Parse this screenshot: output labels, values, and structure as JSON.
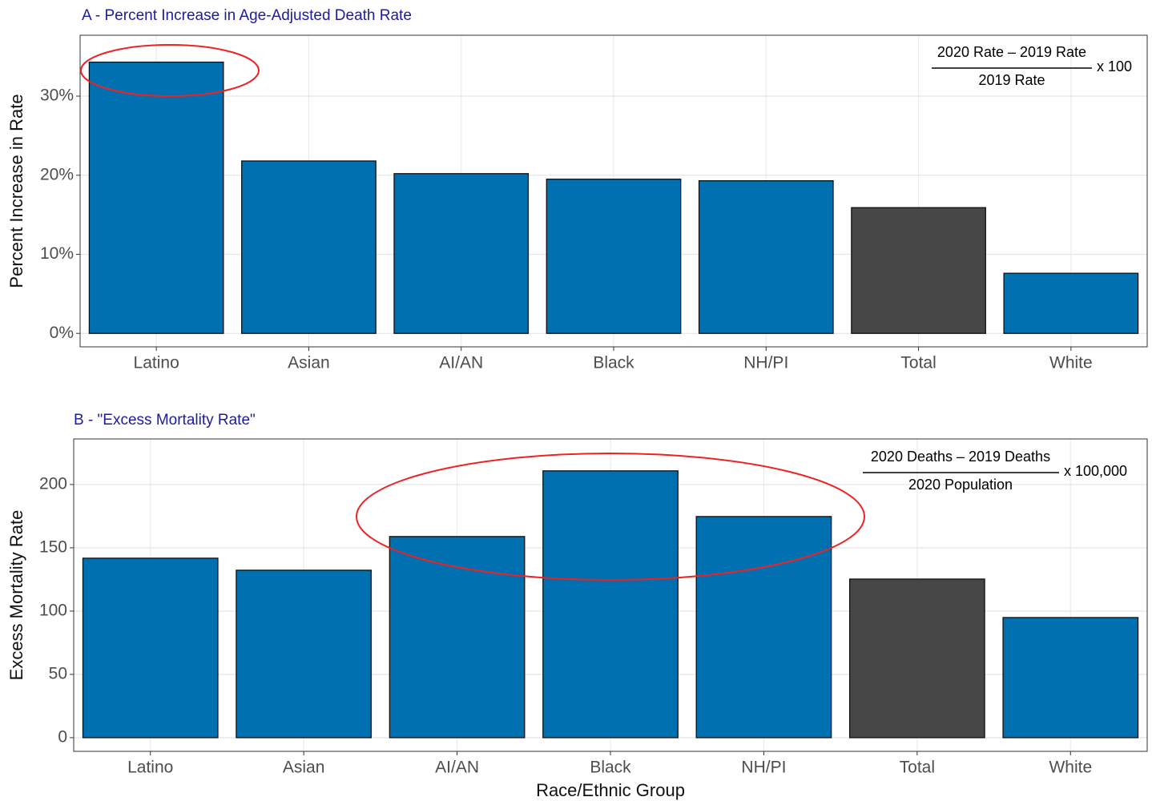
{
  "chart_data": [
    {
      "type": "bar",
      "title": "A - Percent Increase in Age-Adjusted Death Rate",
      "y_label": "Percent Increase in Rate",
      "categories": [
        "Latino",
        "Asian",
        "AI/AN",
        "Black",
        "NH/PI",
        "Total",
        "White"
      ],
      "values": [
        34.3,
        21.8,
        20.2,
        19.5,
        19.3,
        15.9,
        7.6
      ],
      "colors": [
        "#0070b0",
        "#0070b0",
        "#0070b0",
        "#0070b0",
        "#0070b0",
        "#474747",
        "#0070b0"
      ],
      "ylim": [
        -1.7,
        37.7
      ],
      "yticks": [
        {
          "value": 0,
          "label": "0%"
        },
        {
          "value": 10,
          "label": "10%"
        },
        {
          "value": 20,
          "label": "20%"
        },
        {
          "value": 30,
          "label": "30%"
        }
      ],
      "grid": true,
      "annotation": {
        "numerator": "2020 Rate – 2019 Rate",
        "denominator": "2019 Rate",
        "multiplier": "x 100"
      }
    },
    {
      "type": "bar",
      "title": "B - \"Excess Mortality Rate\"",
      "y_label": "Excess Mortality Rate",
      "x_label": "Race/Ethnic Group",
      "categories": [
        "Latino",
        "Asian",
        "AI/AN",
        "Black",
        "NH/PI",
        "Total",
        "White"
      ],
      "values": [
        141.8,
        132.3,
        158.9,
        210.8,
        174.7,
        125.3,
        94.9
      ],
      "colors": [
        "#0070b0",
        "#0070b0",
        "#0070b0",
        "#0070b0",
        "#0070b0",
        "#474747",
        "#0070b0"
      ],
      "ylim": [
        -10.8,
        236
      ],
      "yticks": [
        0,
        50,
        100,
        150,
        200
      ],
      "grid": true,
      "annotation": {
        "numerator": "2020 Deaths – 2019 Deaths",
        "denominator": "2020 Population",
        "multiplier": "x 100,000"
      }
    }
  ]
}
